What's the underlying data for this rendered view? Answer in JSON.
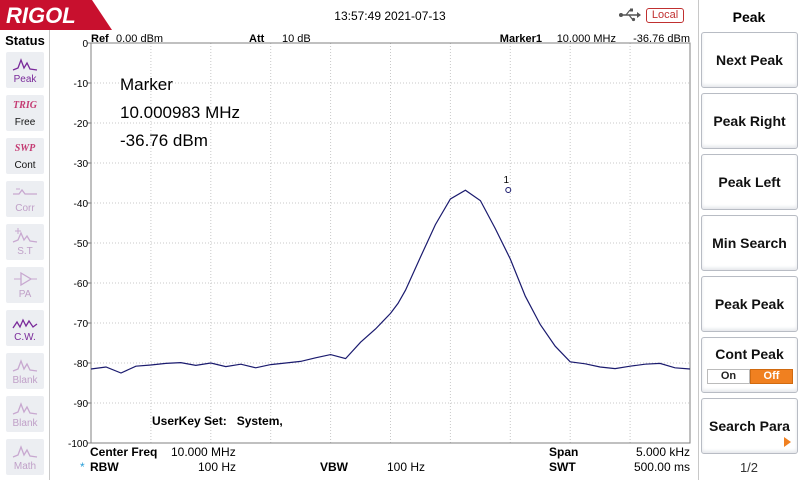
{
  "brand": "RIGOL",
  "timestamp": "13:57:49 2021-07-13",
  "remote_state": "Local",
  "status": {
    "title": "Status",
    "items": [
      {
        "code": "",
        "label": "Peak",
        "icon": "peak-icon",
        "state": "active"
      },
      {
        "code": "TRIG",
        "label": "Free",
        "icon": "",
        "state": "text"
      },
      {
        "code": "SWP",
        "label": "Cont",
        "icon": "",
        "state": "text"
      },
      {
        "code": "",
        "label": "Corr",
        "icon": "corr-icon",
        "state": "dim"
      },
      {
        "code": "",
        "label": "S.T",
        "icon": "st-icon",
        "state": "dim"
      },
      {
        "code": "",
        "label": "PA",
        "icon": "pa-icon",
        "state": "dim"
      },
      {
        "code": "",
        "label": "C.W.",
        "icon": "cw-icon",
        "state": "active"
      },
      {
        "code": "",
        "label": "Blank",
        "icon": "blank-icon",
        "state": "dim"
      },
      {
        "code": "",
        "label": "Blank",
        "icon": "blank-icon",
        "state": "dim"
      },
      {
        "code": "",
        "label": "Math",
        "icon": "math-icon",
        "state": "dim"
      }
    ]
  },
  "header": {
    "ref_label": "Ref",
    "ref_value": "0.00 dBm",
    "att_label": "Att",
    "att_value": "10 dB",
    "marker_label": "Marker1",
    "marker_freq": "10.000 MHz",
    "marker_level": "-36.76 dBm"
  },
  "marker_readout": {
    "title": "Marker",
    "freq": "10.000983 MHz",
    "level": "-36.76 dBm",
    "id": "1"
  },
  "userkey": "UserKey Set:   System,",
  "footer": {
    "center_label": "Center Freq",
    "center_value": "10.000 MHz",
    "span_label": "Span",
    "span_value": "5.000 kHz",
    "rbw_star": "*",
    "rbw_label": "RBW",
    "rbw_value": "100 Hz",
    "vbw_label": "VBW",
    "vbw_value": "100 Hz",
    "swt_label": "SWT",
    "swt_value": "500.00 ms"
  },
  "menu": {
    "title": "Peak",
    "softkeys": [
      "Next Peak",
      "Peak Right",
      "Peak Left",
      "Min Search",
      "Peak Peak",
      "Cont Peak",
      "Search Para"
    ],
    "cont_peak": {
      "on": "On",
      "off": "Off",
      "selected": "Off"
    },
    "page": "1/2"
  },
  "colors": {
    "trace": "#1a1a6e",
    "accent": "#f08020",
    "brand": "#c8102e",
    "icon": "#7a2a9a"
  },
  "chart_data": {
    "type": "line",
    "xlabel": "",
    "ylabel": "",
    "ylim": [
      -100,
      0
    ],
    "xlim": [
      9997500,
      10002500
    ],
    "y_ticks": [
      0,
      -10,
      -20,
      -30,
      -40,
      -50,
      -60,
      -70,
      -80,
      -90,
      -100
    ],
    "grid": true,
    "series": [
      {
        "x": [
          9997500,
          9997625,
          9997750,
          9997875,
          9998000,
          9998125,
          9998250,
          9998375,
          9998500,
          9998625,
          9998750,
          9998875,
          9999000,
          9999125,
          9999250,
          9999375,
          9999500,
          9999625,
          9999750,
          9999875,
          10000000,
          10000063,
          10000125,
          10000250,
          10000375,
          10000500,
          10000625,
          10000750,
          10000875,
          10001000,
          10001125,
          10001250,
          10001375,
          10001500,
          10001625,
          10001750,
          10001875,
          10002000,
          10002125,
          10002250,
          10002375,
          10002500
        ],
        "y": [
          -81.5,
          -81.0,
          -82.5,
          -80.8,
          -80.5,
          -80.1,
          -79.9,
          -80.6,
          -80.0,
          -80.9,
          -80.3,
          -81.2,
          -80.4,
          -80.0,
          -79.6,
          -78.7,
          -77.9,
          -78.9,
          -74.8,
          -71.5,
          -67.6,
          -65.1,
          -61.8,
          -53.5,
          -45.4,
          -39.0,
          -36.8,
          -39.4,
          -46.4,
          -54.0,
          -63.3,
          -70.4,
          -75.8,
          -79.7,
          -80.2,
          -81.0,
          -81.4,
          -80.8,
          -80.3,
          -80.1,
          -81.2,
          -81.5
        ]
      }
    ],
    "marker": {
      "x": 10000983,
      "y": -36.76,
      "label": "1"
    }
  }
}
